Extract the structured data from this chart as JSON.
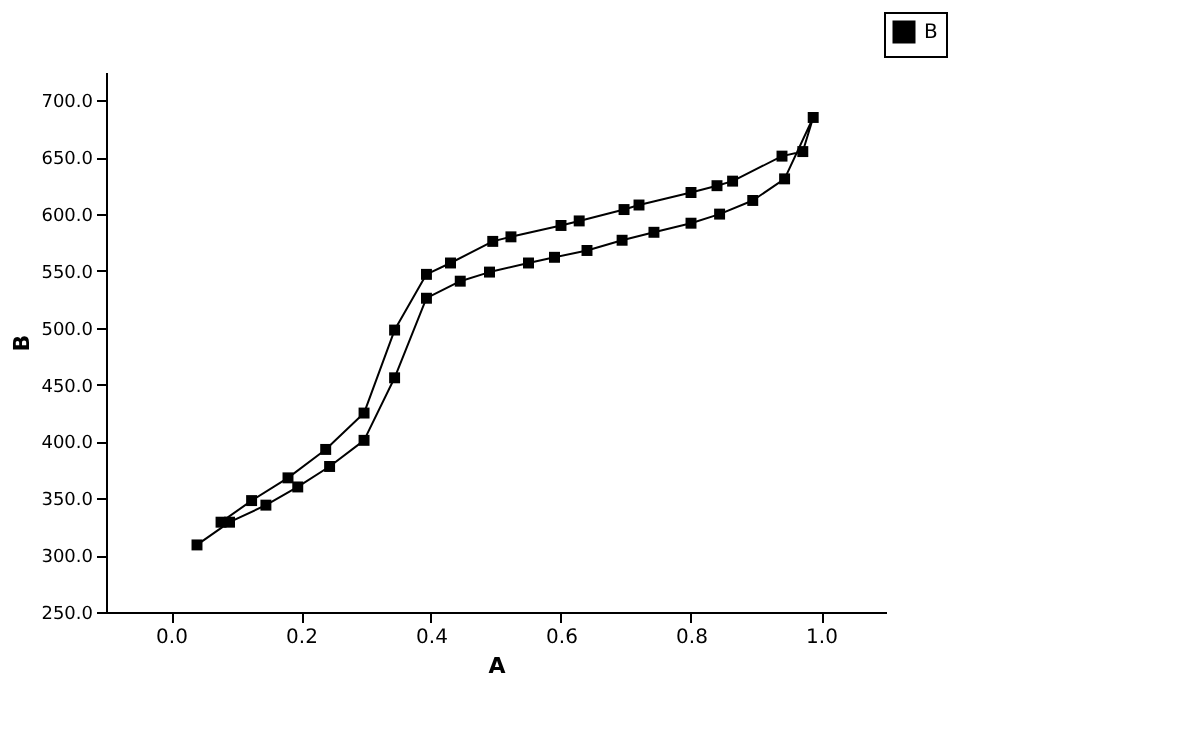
{
  "chart_data": {
    "type": "line",
    "xlabel": "A",
    "ylabel": "B",
    "xlim": [
      -0.1,
      1.1
    ],
    "xticks": [
      {
        "value": 0,
        "label": "0.0"
      },
      0.2,
      0.4,
      0.6,
      0.8,
      {
        "value": 1,
        "label": "1.0"
      }
    ],
    "ylim": [
      250,
      725
    ],
    "yticks": [
      {
        "value": 250,
        "label": "250.0"
      },
      {
        "value": 300,
        "label": "300.0"
      },
      {
        "value": 350,
        "label": "350.0"
      },
      {
        "value": 400,
        "label": "400.0"
      },
      {
        "value": 450,
        "label": "450.0"
      },
      {
        "value": 500,
        "label": "500.0"
      },
      {
        "value": 550,
        "label": "550.0"
      },
      {
        "value": 600,
        "label": "600.0"
      },
      {
        "value": 650,
        "label": "650.0"
      },
      {
        "value": 700,
        "label": "700.0"
      }
    ],
    "series": [
      {
        "name": "B",
        "color": "#000000",
        "x": [
          0.04,
          0.09,
          0.146,
          0.195,
          0.244,
          0.297,
          0.344,
          0.393,
          0.445,
          0.49,
          0.55,
          0.59,
          0.64,
          0.694,
          0.743,
          0.8,
          0.844,
          0.895,
          0.944,
          0.988,
          0.972,
          0.94,
          0.864,
          0.84,
          0.8,
          0.72,
          0.697,
          0.628,
          0.6,
          0.523,
          0.495,
          0.43,
          0.393,
          0.344,
          0.297,
          0.238,
          0.18,
          0.124,
          0.077
        ],
        "values": [
          309,
          329,
          344,
          360,
          378,
          401,
          456,
          526,
          541,
          549,
          557,
          562,
          568,
          577,
          584,
          592,
          600,
          612,
          631,
          685,
          655,
          651,
          629,
          625,
          619,
          608,
          604,
          594,
          590,
          580,
          576,
          557,
          547,
          498,
          425,
          393,
          368,
          348,
          329
        ]
      }
    ],
    "marker": "square",
    "line_style": "solid",
    "legend": "top right",
    "grid": false
  }
}
